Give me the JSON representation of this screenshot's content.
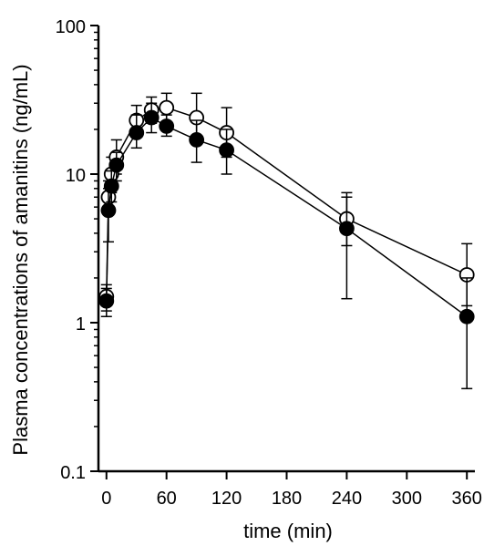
{
  "chart_data": {
    "type": "scatter",
    "xlabel": "time (min)",
    "ylabel": "Plasma concentrations of amanitins (ng/mL)",
    "xlim": [
      -8,
      368
    ],
    "ylim": [
      0.1,
      100
    ],
    "y_scale": "log",
    "grid": false,
    "x_ticks": [
      0,
      60,
      120,
      180,
      240,
      300,
      360
    ],
    "x_tick_labels": [
      "0",
      "60",
      "120",
      "180",
      "240",
      "300",
      "360"
    ],
    "y_ticks": [
      0.1,
      1,
      10,
      100
    ],
    "y_tick_labels": [
      "0.1",
      "1",
      "10",
      "100"
    ],
    "series": [
      {
        "marker": "open-circle",
        "color": "#000000",
        "points": [
          {
            "x": 0,
            "y": 1.5,
            "err_lo": 1.2,
            "err_hi": 1.8
          },
          {
            "x": 2,
            "y": 7.0,
            "err_lo": 5.5,
            "err_hi": 9.0
          },
          {
            "x": 5,
            "y": 10.0,
            "err_lo": 7.5,
            "err_hi": 13.0
          },
          {
            "x": 10,
            "y": 13.0,
            "err_lo": 10.0,
            "err_hi": 17.0
          },
          {
            "x": 30,
            "y": 23.0,
            "err_lo": 18.0,
            "err_hi": 29.0
          },
          {
            "x": 45,
            "y": 27.0,
            "err_lo": 22.0,
            "err_hi": 33.0
          },
          {
            "x": 60,
            "y": 28.0,
            "err_lo": 22.0,
            "err_hi": 35.0
          },
          {
            "x": 90,
            "y": 24.0,
            "err_lo": 16.0,
            "err_hi": 35.0
          },
          {
            "x": 120,
            "y": 19.0,
            "err_lo": 13.0,
            "err_hi": 28.0
          },
          {
            "x": 240,
            "y": 5.0,
            "err_lo": 3.3,
            "err_hi": 7.5
          },
          {
            "x": 360,
            "y": 2.1,
            "err_lo": 1.3,
            "err_hi": 3.4
          }
        ]
      },
      {
        "marker": "filled-circle",
        "color": "#000000",
        "points": [
          {
            "x": 0,
            "y": 1.4,
            "err_lo": 1.1,
            "err_hi": 1.7
          },
          {
            "x": 2,
            "y": 5.7,
            "err_lo": 3.5,
            "err_hi": 8.0
          },
          {
            "x": 5,
            "y": 8.3,
            "err_lo": 6.5,
            "err_hi": 10.5
          },
          {
            "x": 10,
            "y": 11.5,
            "err_lo": 9.0,
            "err_hi": 14.0
          },
          {
            "x": 30,
            "y": 19.0,
            "err_lo": 15.0,
            "err_hi": 25.0
          },
          {
            "x": 45,
            "y": 24.0,
            "err_lo": 19.0,
            "err_hi": 30.0
          },
          {
            "x": 60,
            "y": 21.0,
            "err_lo": 18.0,
            "err_hi": 25.0
          },
          {
            "x": 90,
            "y": 17.0,
            "err_lo": 12.0,
            "err_hi": 23.0
          },
          {
            "x": 120,
            "y": 14.5,
            "err_lo": 10.0,
            "err_hi": 20.0
          },
          {
            "x": 240,
            "y": 4.3,
            "err_lo": 1.45,
            "err_hi": 7.0
          },
          {
            "x": 360,
            "y": 1.1,
            "err_lo": 0.36,
            "err_hi": 2.0
          }
        ]
      }
    ]
  }
}
